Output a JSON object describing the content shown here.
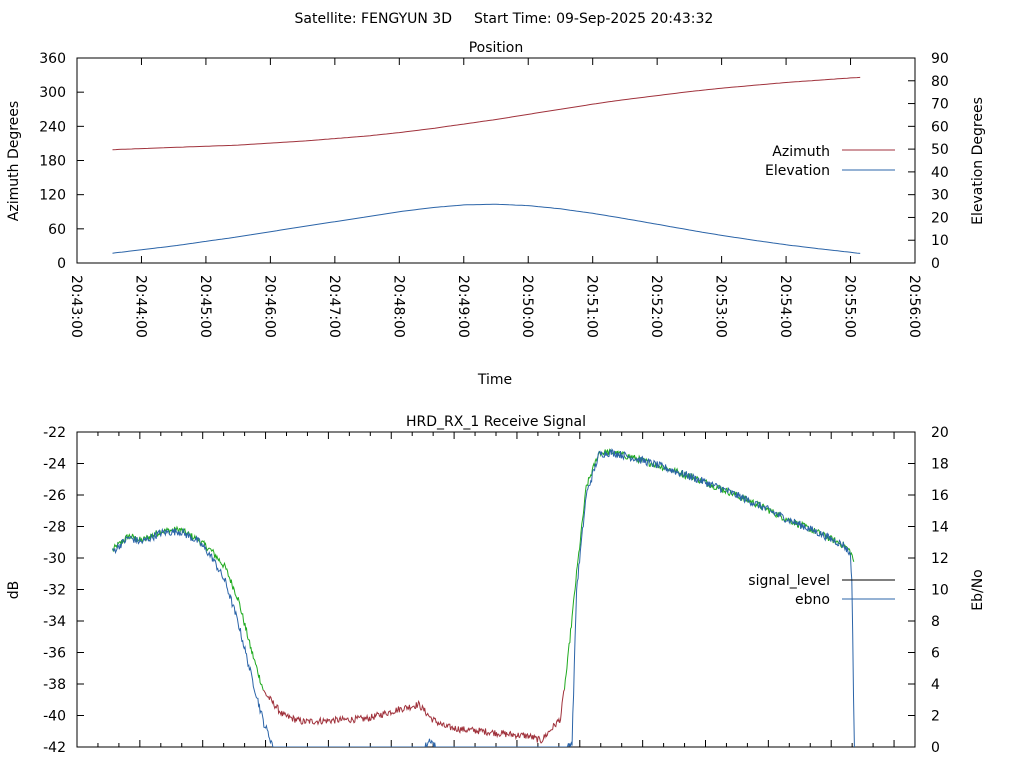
{
  "header": {
    "satellite": "Satellite: FENGYUN 3D",
    "start_time": "Start Time: 09-Sep-2025 20:43:32"
  },
  "chart_data": [
    {
      "type": "line",
      "title": "Position",
      "xlabel": "Time",
      "ylabel": "Azimuth Degrees",
      "y2label": "Elevation Degrees",
      "x_ticks": [
        "20:43:00",
        "20:44:00",
        "20:45:00",
        "20:46:00",
        "20:47:00",
        "20:48:00",
        "20:49:00",
        "20:50:00",
        "20:51:00",
        "20:52:00",
        "20:53:00",
        "20:54:00",
        "20:55:00",
        "20:56:00"
      ],
      "ylim": [
        0,
        360
      ],
      "y_ticks": [
        "0",
        "60",
        "120",
        "180",
        "240",
        "300",
        "360"
      ],
      "y2lim": [
        0,
        90
      ],
      "y2_ticks": [
        "0",
        "10",
        "20",
        "30",
        "40",
        "50",
        "60",
        "70",
        "80",
        "90"
      ],
      "legend_position": "right",
      "series": [
        {
          "name": "Azimuth",
          "axis": "left",
          "color": "#a0323c",
          "x_minutes": [
            0.55,
            1.5,
            2.5,
            3.5,
            4.5,
            5.0,
            5.5,
            6.0,
            6.5,
            7.0,
            7.5,
            8.0,
            8.5,
            9.0,
            9.5,
            10.0,
            10.5,
            11.0,
            11.5,
            12.0,
            12.15
          ],
          "values": [
            199,
            203,
            207,
            214,
            223,
            229,
            236,
            244,
            252,
            261,
            270,
            279,
            287,
            294,
            301,
            307,
            312,
            317,
            321,
            325,
            326
          ]
        },
        {
          "name": "Elevation",
          "axis": "right",
          "color": "#2b64a8",
          "x_minutes": [
            0.55,
            1.5,
            2.5,
            3.5,
            4.5,
            5.0,
            5.5,
            6.0,
            6.5,
            7.0,
            7.5,
            8.0,
            8.5,
            9.0,
            9.5,
            10.0,
            10.5,
            11.0,
            11.5,
            12.0,
            12.15
          ],
          "values": [
            4.3,
            7.5,
            11.5,
            16.0,
            20.3,
            22.5,
            24.3,
            25.5,
            25.8,
            25.2,
            23.8,
            21.8,
            19.5,
            17.0,
            14.5,
            12.1,
            10.0,
            8.0,
            6.3,
            4.7,
            4.2
          ]
        }
      ]
    },
    {
      "type": "line",
      "title": "HRD_RX_1 Receive Signal",
      "xlabel": "",
      "ylabel": "dB",
      "y2label": "Eb/No",
      "ylim": [
        -42,
        -22
      ],
      "y_ticks": [
        "-22",
        "-24",
        "-26",
        "-28",
        "-30",
        "-32",
        "-34",
        "-36",
        "-38",
        "-40",
        "-42"
      ],
      "y2lim": [
        0,
        20
      ],
      "y2_ticks": [
        "0",
        "2",
        "4",
        "6",
        "8",
        "10",
        "12",
        "14",
        "16",
        "18",
        "20"
      ],
      "x_minor_tick_count": 40,
      "legend_position": "right",
      "series": [
        {
          "name": "signal_level",
          "axis": "left",
          "color": "#000000",
          "x_minutes": [
            0.55,
            0.8,
            1.0,
            1.3,
            1.6,
            1.9,
            2.1,
            2.3,
            2.5,
            2.7,
            2.9,
            3.2,
            3.5,
            4.0,
            4.5,
            5.0,
            5.3,
            5.5,
            5.7,
            6.0,
            6.3,
            6.7,
            7.0,
            7.2,
            7.5,
            7.6,
            7.75,
            7.9,
            8.1,
            8.3,
            8.6,
            9.0,
            9.5,
            10.0,
            10.5,
            11.0,
            11.5,
            11.9,
            12.0,
            12.05
          ],
          "values": [
            -29.5,
            -28.6,
            -28.9,
            -28.3,
            -28.2,
            -28.9,
            -29.6,
            -30.6,
            -32.6,
            -35.8,
            -38.5,
            -40.0,
            -40.4,
            -40.3,
            -40.2,
            -39.6,
            -39.3,
            -40.2,
            -40.7,
            -40.9,
            -41.0,
            -41.2,
            -41.3,
            -41.6,
            -40.2,
            -37.0,
            -31.0,
            -25.5,
            -23.3,
            -23.3,
            -23.6,
            -24.1,
            -24.8,
            -25.6,
            -26.5,
            -27.5,
            -28.4,
            -29.2,
            -29.6,
            -30.2
          ],
          "noise": 0.22
        },
        {
          "name": "ebno",
          "axis": "right",
          "color": "#2b64a8",
          "x_minutes": [
            0.55,
            0.8,
            1.0,
            1.3,
            1.6,
            1.9,
            2.1,
            2.3,
            2.5,
            2.7,
            2.9,
            3.05,
            5.4,
            5.48,
            5.56,
            7.6,
            7.68,
            7.75,
            7.9,
            8.1,
            8.3,
            8.6,
            9.0,
            9.5,
            10.0,
            10.5,
            11.0,
            11.5,
            11.9,
            12.0,
            12.02,
            12.06
          ],
          "values": [
            12.4,
            13.3,
            13.0,
            13.6,
            13.7,
            13.0,
            12.0,
            10.5,
            7.9,
            4.6,
            1.5,
            0.0,
            0.0,
            0.5,
            0.0,
            0.0,
            0.3,
            10.0,
            16.0,
            18.6,
            18.7,
            18.4,
            17.9,
            17.2,
            16.4,
            15.5,
            14.5,
            13.6,
            12.8,
            12.2,
            10.5,
            0.0
          ],
          "noise": 0.25
        }
      ]
    }
  ],
  "colors": {
    "signal_trace_green": "#1faa1f",
    "azimuth": "#a0323c",
    "elevation": "#2b64a8",
    "signal_level_legend": "#000000",
    "ebno": "#2b64a8"
  }
}
